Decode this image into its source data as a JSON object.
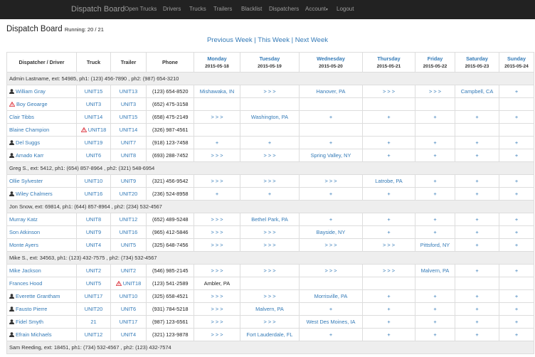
{
  "navbar": {
    "brand": "Dispatch Board",
    "items": [
      "Open Trucks",
      "Drivers",
      "Trucks",
      "Trailers",
      "Blacklist",
      "Dispatchers",
      "Account",
      "Logout"
    ]
  },
  "header": {
    "title": "Dispatch Board",
    "running": "Running: 20 / 21"
  },
  "week_nav": [
    "Previous Week",
    "This Week",
    "Next Week"
  ],
  "table": {
    "columns": [
      "Dispatcher / Driver",
      "Truck",
      "Trailer",
      "Phone"
    ],
    "days": [
      {
        "name": "Monday",
        "date": "2015-05-18"
      },
      {
        "name": "Tuesday",
        "date": "2015-05-19"
      },
      {
        "name": "Wednesday",
        "date": "2015-05-20"
      },
      {
        "name": "Thursday",
        "date": "2015-05-21"
      },
      {
        "name": "Friday",
        "date": "2015-05-22"
      },
      {
        "name": "Saturday",
        "date": "2015-05-23"
      },
      {
        "name": "Sunday",
        "date": "2015-05-24"
      }
    ],
    "groups": [
      {
        "header": "Admin Lastname, ext: 54985, ph1: (123) 456-7890 , ph2: (987) 654-3210",
        "drivers": [
          {
            "name": "William Gray",
            "icon": "user",
            "truck": "UNIT15",
            "trailer": "UNIT13",
            "phone": "(123) 654-8520",
            "days": [
              "Mishawaka, IN",
              "> > >",
              "Hanover, PA",
              "> > >",
              "> > >",
              "Campbell, CA",
              "+"
            ]
          },
          {
            "name": "Boy Geoarge",
            "icon": "warning",
            "truck": "UNIT3",
            "trailer": "UNIT3",
            "phone": "(652) 475-3158",
            "days": [
              null,
              null,
              null,
              null,
              null,
              null,
              null
            ]
          },
          {
            "name": "Clair Tibbs",
            "truck": "UNIT14",
            "trailer": "UNIT15",
            "phone": "(658) 475-2149",
            "days": [
              "> > >",
              "Washington, PA",
              "+",
              "+",
              "+",
              "+",
              "+"
            ]
          },
          {
            "name": "Blaine Champion",
            "truck": "UNIT18",
            "truck_icon": "warning",
            "trailer": "UNIT14",
            "phone": "(326) 987-4561",
            "days": [
              null,
              null,
              null,
              null,
              null,
              null,
              null
            ]
          },
          {
            "name": "Del Suggs",
            "icon": "user",
            "truck": "UNIT19",
            "trailer": "UNIT7",
            "phone": "(918) 123-7458",
            "days": [
              "+",
              "+",
              "+",
              "+",
              "+",
              "+",
              "+"
            ]
          },
          {
            "name": "Amado Karr",
            "icon": "user",
            "truck": "UNIT6",
            "trailer": "UNIT8",
            "phone": "(693) 288-7452",
            "days": [
              "> > >",
              "> > >",
              "Spring Valley, NY",
              "+",
              "+",
              "+",
              "+"
            ]
          }
        ]
      },
      {
        "header": "Greg S., ext: 5412, ph1: (654) 857-8964 , ph2: (321) 548-6954",
        "drivers": [
          {
            "name": "Ollie Sylvester",
            "truck": "UNIT10",
            "trailer": "UNIT9",
            "phone": "(321) 456-9542",
            "days": [
              "> > >",
              "> > >",
              "> > >",
              "Latrobe, PA",
              "+",
              "+",
              "+"
            ]
          },
          {
            "name": "Wiley Chalmers",
            "icon": "user",
            "truck": "UNIT16",
            "trailer": "UNIT20",
            "phone": "(236) 524-8958",
            "days": [
              "+",
              "+",
              "+",
              "+",
              "+",
              "+",
              "+"
            ]
          }
        ]
      },
      {
        "header": "Jon Snow, ext: 69814, ph1: (644) 857-8964 , ph2: (234) 532-4567",
        "drivers": [
          {
            "name": "Murray Katz",
            "truck": "UNIT8",
            "trailer": "UNIT12",
            "phone": "(652) 489-5248",
            "days": [
              "> > >",
              "Bethel Park, PA",
              "+",
              "+",
              "+",
              "+",
              "+"
            ]
          },
          {
            "name": "Son Atkinson",
            "truck": "UNIT9",
            "trailer": "UNIT16",
            "phone": "(965) 412-5846",
            "days": [
              "> > >",
              "> > >",
              "Bayside, NY",
              "+",
              "+",
              "+",
              "+"
            ]
          },
          {
            "name": "Monte Ayers",
            "truck": "UNIT4",
            "trailer": "UNIT5",
            "phone": "(325) 648-7456",
            "days": [
              "> > >",
              "> > >",
              "> > >",
              "> > >",
              "Pittsford, NY",
              "+",
              "+"
            ]
          }
        ]
      },
      {
        "header": "Mike S., ext: 34563, ph1: (123) 432-7575 , ph2: (734) 532-4567",
        "drivers": [
          {
            "name": "Mike Jackson",
            "truck": "UNIT2",
            "trailer": "UNIT2",
            "phone": "(546) 985-2145",
            "days": [
              "> > >",
              "> > >",
              "> > >",
              "> > >",
              "Malvern, PA",
              "+",
              "+"
            ]
          },
          {
            "name": "Frances Hood",
            "truck": "UNIT5",
            "trailer": "UNIT18",
            "trailer_icon": "warning",
            "phone": "(123) 541-2589",
            "days": [
              "Ambler, PA",
              null,
              null,
              null,
              null,
              null,
              null
            ]
          },
          {
            "name": "Everette Grantham",
            "icon": "user",
            "truck": "UNIT17",
            "trailer": "UNIT10",
            "phone": "(325) 658-4521",
            "days": [
              "> > >",
              "> > >",
              "Morrisville, PA",
              "+",
              "+",
              "+",
              "+"
            ]
          },
          {
            "name": "Fausto Pierre",
            "icon": "user",
            "truck": "UNIT20",
            "trailer": "UNIT6",
            "phone": "(931) 784-5218",
            "days": [
              "> > >",
              "Malvern, PA",
              "+",
              "+",
              "+",
              "+",
              "+"
            ]
          },
          {
            "name": "Fidel Smyth",
            "icon": "user",
            "truck": "21",
            "trailer": "UNIT17",
            "phone": "(987) 123-6561",
            "days": [
              "> > >",
              "> > >",
              "West Des Moines, IA",
              "+",
              "+",
              "+",
              "+"
            ]
          },
          {
            "name": "Efrain Michaels",
            "icon": "user",
            "truck": "UNIT12",
            "trailer": "UNIT4",
            "phone": "(321) 123-9878",
            "days": [
              "> > >",
              "Fort Lauderdale, FL",
              "+",
              "+",
              "+",
              "+",
              "+"
            ]
          }
        ]
      },
      {
        "header": "Sam Reeding, ext: 18451, ph1: (734) 532-4567 , ph2: (123) 432-7574",
        "drivers": []
      }
    ]
  }
}
